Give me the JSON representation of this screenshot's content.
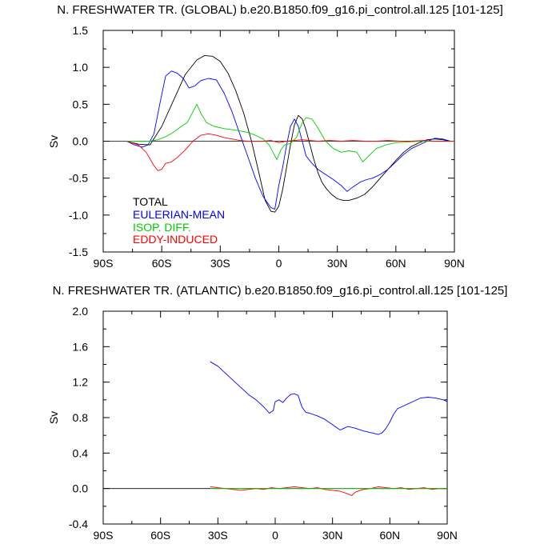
{
  "chart_data": [
    {
      "type": "line",
      "title": "N. FRESHWATER TR. (GLOBAL) b.e20.B1850.f09_g16.pi_control.all.125 [101-125]",
      "ylabel": "Sv",
      "xlabel": "",
      "xlim": [
        -90,
        90
      ],
      "ylim": [
        -1.5,
        1.5
      ],
      "x_ticks": [
        -90,
        -60,
        -30,
        0,
        30,
        60,
        90
      ],
      "x_tick_labels": [
        "90S",
        "60S",
        "30S",
        "0",
        "30N",
        "60N",
        "90N"
      ],
      "y_ticks": [
        -1.5,
        -1.0,
        -0.5,
        0.0,
        0.5,
        1.0,
        1.5
      ],
      "y_tick_labels": [
        "-1.5",
        "-1.0",
        "-0.5",
        "0.0",
        "0.5",
        "1.0",
        "1.5"
      ],
      "grid": false,
      "legend_position": "bottom-left",
      "series": [
        {
          "name": "TOTAL",
          "color": "#000000",
          "x": [
            -78,
            -72,
            -66,
            -60,
            -54,
            -48,
            -42,
            -38,
            -34,
            -30,
            -26,
            -22,
            -18,
            -14,
            -10,
            -7,
            -4,
            -2,
            0,
            2,
            4,
            6,
            8,
            10,
            12,
            14,
            16,
            18,
            20,
            22,
            24,
            27,
            30,
            33,
            36,
            40,
            44,
            48,
            52,
            56,
            60,
            64,
            68,
            72,
            76,
            80,
            84,
            88,
            90
          ],
          "y": [
            0.0,
            -0.04,
            -0.05,
            0.2,
            0.55,
            0.9,
            1.1,
            1.16,
            1.15,
            1.08,
            0.92,
            0.68,
            0.38,
            0.0,
            -0.45,
            -0.8,
            -0.95,
            -0.96,
            -0.88,
            -0.65,
            -0.35,
            -0.05,
            0.22,
            0.35,
            0.3,
            0.15,
            -0.05,
            -0.25,
            -0.42,
            -0.55,
            -0.63,
            -0.72,
            -0.78,
            -0.8,
            -0.8,
            -0.77,
            -0.72,
            -0.62,
            -0.5,
            -0.38,
            -0.26,
            -0.15,
            -0.07,
            -0.02,
            0.02,
            0.03,
            0.02,
            0.0,
            0.0
          ]
        },
        {
          "name": "EULERIAN-MEAN",
          "color": "#0000ff",
          "x": [
            -78,
            -74,
            -70,
            -67,
            -64,
            -61,
            -58,
            -55,
            -52,
            -49,
            -46,
            -43,
            -40,
            -36,
            -32,
            -28,
            -24,
            -20,
            -16,
            -12,
            -8,
            -4,
            -2,
            0,
            2,
            4,
            6,
            8,
            10,
            12,
            14,
            17,
            20,
            24,
            28,
            32,
            35,
            38,
            42,
            45,
            48,
            52,
            56,
            60,
            64,
            68,
            72,
            76,
            80,
            84,
            88,
            90
          ],
          "y": [
            0.0,
            -0.05,
            -0.08,
            -0.05,
            0.1,
            0.5,
            0.88,
            0.95,
            0.92,
            0.85,
            0.72,
            0.75,
            0.82,
            0.85,
            0.83,
            0.65,
            0.4,
            0.1,
            -0.2,
            -0.5,
            -0.75,
            -0.9,
            -0.92,
            -0.6,
            -0.35,
            -0.05,
            0.2,
            0.3,
            0.2,
            0.0,
            -0.2,
            -0.3,
            -0.38,
            -0.45,
            -0.52,
            -0.6,
            -0.68,
            -0.62,
            -0.55,
            -0.52,
            -0.5,
            -0.45,
            -0.38,
            -0.28,
            -0.18,
            -0.1,
            -0.05,
            0.0,
            0.04,
            0.03,
            0.0,
            0.0
          ]
        },
        {
          "name": "ISOP. DIFF.",
          "color": "#00cc00",
          "x": [
            -78,
            -72,
            -66,
            -62,
            -58,
            -54,
            -50,
            -47,
            -44,
            -42,
            -40,
            -37,
            -33,
            -28,
            -22,
            -16,
            -12,
            -8,
            -5,
            -3,
            -1,
            1,
            3,
            6,
            9,
            12,
            14,
            17,
            20,
            24,
            28,
            32,
            36,
            40,
            43,
            46,
            50,
            55,
            60,
            66,
            72,
            80,
            90
          ],
          "y": [
            0.0,
            0.0,
            0.0,
            0.02,
            0.06,
            0.12,
            0.2,
            0.25,
            0.4,
            0.5,
            0.38,
            0.25,
            0.2,
            0.17,
            0.15,
            0.12,
            0.08,
            0.03,
            -0.05,
            -0.15,
            -0.25,
            -0.12,
            -0.05,
            -0.03,
            0.05,
            0.25,
            0.32,
            0.3,
            0.18,
            0.0,
            -0.1,
            -0.15,
            -0.13,
            -0.15,
            -0.28,
            -0.2,
            -0.1,
            -0.05,
            -0.02,
            -0.01,
            0.0,
            0.0,
            0.0
          ]
        },
        {
          "name": "EDDY-INDUCED",
          "color": "#ff0000",
          "x": [
            -78,
            -72,
            -68,
            -64,
            -62,
            -60,
            -58,
            -55,
            -52,
            -48,
            -44,
            -40,
            -36,
            -32,
            -28,
            -24,
            -20,
            -16,
            -12,
            -8,
            -4,
            0,
            4,
            8,
            12,
            16,
            20,
            26,
            32,
            38,
            44,
            50,
            56,
            62,
            68,
            74,
            80,
            86,
            90
          ],
          "y": [
            0.0,
            -0.05,
            -0.15,
            -0.33,
            -0.4,
            -0.38,
            -0.3,
            -0.28,
            -0.22,
            -0.12,
            0.0,
            0.08,
            0.1,
            0.08,
            0.05,
            0.03,
            0.01,
            0.0,
            0.0,
            0.0,
            0.01,
            -0.02,
            0.0,
            0.01,
            0.02,
            0.01,
            0.0,
            0.01,
            0.0,
            0.01,
            0.0,
            0.0,
            0.01,
            0.0,
            0.0,
            0.01,
            0.0,
            0.0,
            0.0
          ]
        }
      ]
    },
    {
      "type": "line",
      "title": "N. FRESHWATER TR. (ATLANTIC) b.e20.B1850.f09_g16.pi_control.all.125 [101-125]",
      "ylabel": "Sv",
      "xlabel": "",
      "xlim": [
        -90,
        90
      ],
      "ylim": [
        -0.4,
        2.0
      ],
      "x_ticks": [
        -90,
        -60,
        -30,
        0,
        30,
        60,
        90
      ],
      "x_tick_labels": [
        "90S",
        "60S",
        "30S",
        "0",
        "30N",
        "60N",
        "90N"
      ],
      "y_ticks": [
        -0.4,
        0.0,
        0.4,
        0.8,
        1.2,
        1.6,
        2.0
      ],
      "y_tick_labels": [
        "-0.4",
        "0.0",
        "0.4",
        "0.8",
        "1.2",
        "1.6",
        "2.0"
      ],
      "grid": false,
      "series": [
        {
          "name": "EULERIAN-MEAN",
          "color": "#0000ff",
          "x": [
            -34,
            -30,
            -26,
            -22,
            -18,
            -14,
            -10,
            -6,
            -3,
            -1,
            0,
            2,
            4,
            6,
            8,
            10,
            12,
            14,
            16,
            18,
            22,
            26,
            30,
            34,
            36,
            38,
            42,
            46,
            50,
            54,
            56,
            58,
            60,
            62,
            64,
            68,
            72,
            76,
            80,
            84,
            88,
            90
          ],
          "y": [
            1.43,
            1.38,
            1.3,
            1.22,
            1.14,
            1.06,
            1.0,
            0.92,
            0.85,
            0.88,
            0.98,
            1.0,
            0.97,
            1.02,
            1.06,
            1.07,
            1.05,
            0.92,
            0.86,
            0.85,
            0.82,
            0.78,
            0.72,
            0.66,
            0.68,
            0.7,
            0.68,
            0.65,
            0.63,
            0.61,
            0.63,
            0.68,
            0.75,
            0.84,
            0.9,
            0.94,
            0.98,
            1.02,
            1.03,
            1.02,
            1.0,
            0.98
          ]
        },
        {
          "name": "EDDY-INDUCED",
          "color": "#ff0000",
          "x": [
            -34,
            -30,
            -26,
            -22,
            -18,
            -14,
            -10,
            -6,
            -2,
            2,
            6,
            10,
            14,
            18,
            22,
            26,
            30,
            34,
            38,
            40,
            42,
            46,
            50,
            54,
            58,
            62,
            66,
            70,
            74,
            78,
            82,
            86,
            90
          ],
          "y": [
            0.02,
            0.01,
            0.0,
            -0.01,
            -0.02,
            -0.01,
            0.0,
            -0.01,
            0.01,
            0.0,
            0.01,
            0.02,
            0.01,
            0.0,
            0.01,
            -0.01,
            -0.02,
            -0.03,
            -0.06,
            -0.08,
            -0.04,
            -0.01,
            0.0,
            0.02,
            0.01,
            0.0,
            0.01,
            -0.01,
            0.0,
            0.01,
            -0.01,
            0.0,
            0.0
          ]
        },
        {
          "name": "ISOP. DIFF.",
          "color": "#00cc00",
          "x": [
            -34,
            -20,
            -10,
            0,
            10,
            20,
            30,
            40,
            50,
            60,
            70,
            80,
            90
          ],
          "y": [
            0.0,
            0.0,
            0.0,
            0.0,
            0.0,
            0.0,
            0.0,
            0.0,
            0.0,
            0.0,
            0.0,
            0.0,
            0.0
          ]
        }
      ]
    }
  ]
}
